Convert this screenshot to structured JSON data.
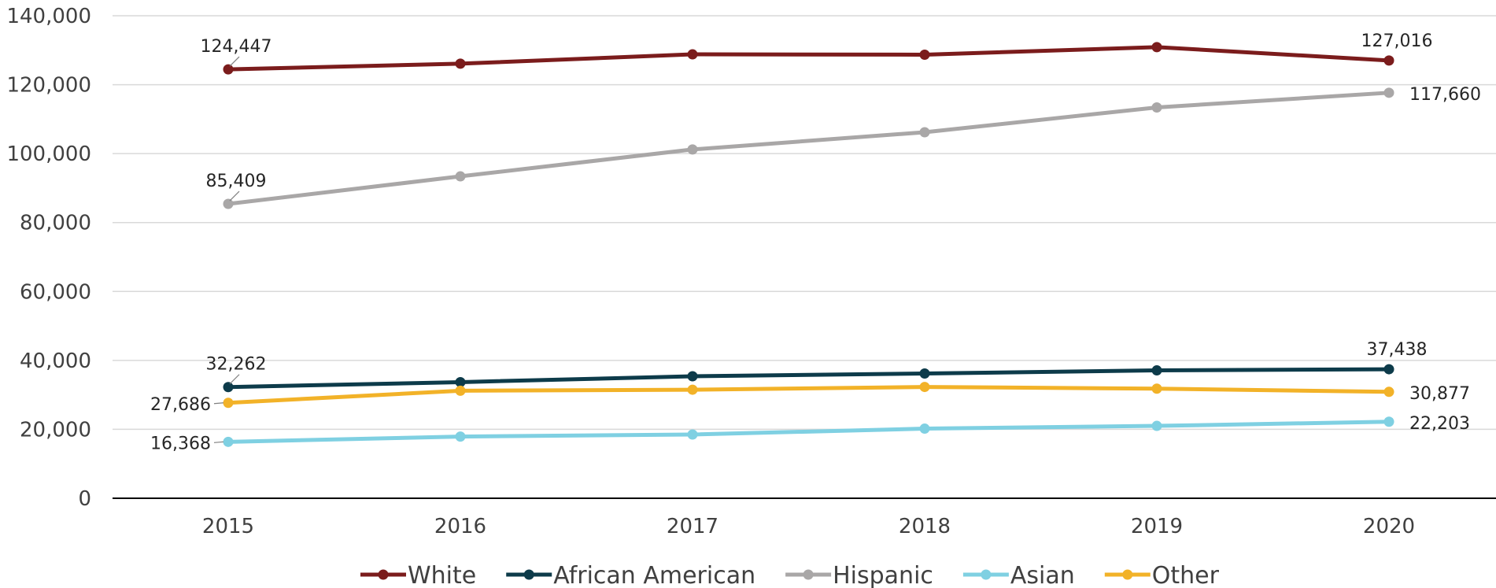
{
  "chart_data": {
    "type": "line",
    "categories": [
      "2015",
      "2016",
      "2017",
      "2018",
      "2019",
      "2020"
    ],
    "ylim": [
      0,
      140000
    ],
    "yticks": [
      0,
      20000,
      40000,
      60000,
      80000,
      100000,
      120000,
      140000
    ],
    "ytick_labels": [
      "0",
      "20,000",
      "40,000",
      "60,000",
      "80,000",
      "100,000",
      "120,000",
      "140,000"
    ],
    "grid": true,
    "legend_position": "bottom",
    "series": [
      {
        "name": "White",
        "color": "#7b1c1c",
        "values": [
          124447,
          126100,
          128800,
          128700,
          130900,
          127016
        ],
        "labels": [
          {
            "index": 0,
            "text": "124,447",
            "pos": "above"
          },
          {
            "index": 5,
            "text": "127,016",
            "pos": "above"
          }
        ]
      },
      {
        "name": "African American",
        "color": "#0d3b4a",
        "values": [
          32262,
          33700,
          35400,
          36200,
          37100,
          37438
        ],
        "labels": [
          {
            "index": 0,
            "text": "32,262",
            "pos": "above"
          },
          {
            "index": 5,
            "text": "37,438",
            "pos": "above"
          }
        ]
      },
      {
        "name": "Hispanic",
        "color": "#a9a7a7",
        "values": [
          85409,
          93400,
          101200,
          106200,
          113400,
          117660
        ],
        "labels": [
          {
            "index": 0,
            "text": "85,409",
            "pos": "above"
          },
          {
            "index": 5,
            "text": "117,660",
            "pos": "right"
          }
        ]
      },
      {
        "name": "Asian",
        "color": "#7fd0e2",
        "values": [
          16368,
          17900,
          18500,
          20200,
          21000,
          22203
        ],
        "labels": [
          {
            "index": 0,
            "text": "16,368",
            "pos": "left"
          },
          {
            "index": 5,
            "text": "22,203",
            "pos": "right"
          }
        ]
      },
      {
        "name": "Other",
        "color": "#f2b228",
        "values": [
          27686,
          31200,
          31500,
          32300,
          31800,
          30877
        ],
        "labels": [
          {
            "index": 0,
            "text": "27,686",
            "pos": "left"
          },
          {
            "index": 5,
            "text": "30,877",
            "pos": "right"
          }
        ]
      }
    ]
  }
}
